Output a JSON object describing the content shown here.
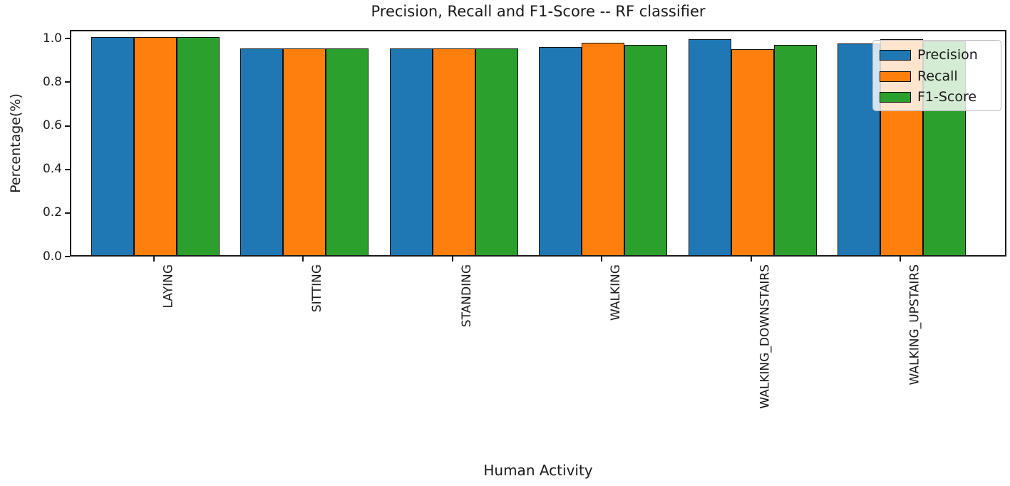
{
  "figure": {
    "background_color": "#ffffff",
    "text_color": "#1a1a1a",
    "bar_edge_color": "#101010"
  },
  "chart_data": {
    "type": "bar",
    "title": "Precision, Recall and F1-Score -- RF classifier",
    "xlabel": "Human Activity",
    "ylabel": "Percentage(%)",
    "categories": [
      "LAYING",
      "SITTING",
      "STANDING",
      "WALKING",
      "WALKING_DOWNSTAIRS",
      "WALKING_UPSTAIRS"
    ],
    "series": [
      {
        "name": "Precision",
        "color": "#1f77b4",
        "values": [
          1.0,
          0.95,
          0.95,
          0.955,
          0.99,
          0.97
        ]
      },
      {
        "name": "Recall",
        "color": "#ff7f0e",
        "values": [
          1.0,
          0.95,
          0.95,
          0.975,
          0.945,
          0.99
        ]
      },
      {
        "name": "F1-Score",
        "color": "#2ca02c",
        "values": [
          1.0,
          0.95,
          0.95,
          0.965,
          0.965,
          0.98
        ]
      }
    ],
    "ylim": [
      0,
      1.04
    ],
    "yticks": [
      "0.0",
      "0.2",
      "0.4",
      "0.6",
      "0.8",
      "1.0"
    ],
    "xtick_rotation": 90,
    "grid": false,
    "legend_position": "upper right",
    "legend_entries": [
      "Precision",
      "Recall",
      "F1-Score"
    ]
  }
}
